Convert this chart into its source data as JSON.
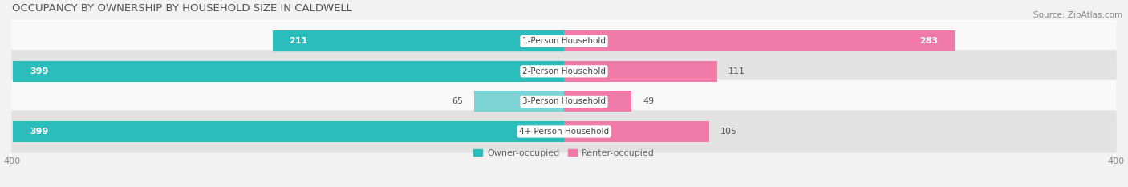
{
  "title": "OCCUPANCY BY OWNERSHIP BY HOUSEHOLD SIZE IN CALDWELL",
  "source": "Source: ZipAtlas.com",
  "categories": [
    "1-Person Household",
    "2-Person Household",
    "3-Person Household",
    "4+ Person Household"
  ],
  "owner_values": [
    211,
    399,
    65,
    399
  ],
  "renter_values": [
    283,
    111,
    49,
    105
  ],
  "owner_color_dark": "#2bbcbc",
  "owner_color_light": "#7dd4d4",
  "renter_color": "#f07aa8",
  "bg_color": "#f2f2f2",
  "row_color_dark": "#e2e2e2",
  "row_color_light": "#f9f9f9",
  "axis_max": 400,
  "legend_owner": "Owner-occupied",
  "legend_renter": "Renter-occupied",
  "title_fontsize": 9.5,
  "label_fontsize": 8,
  "tick_fontsize": 8,
  "source_fontsize": 7.5
}
